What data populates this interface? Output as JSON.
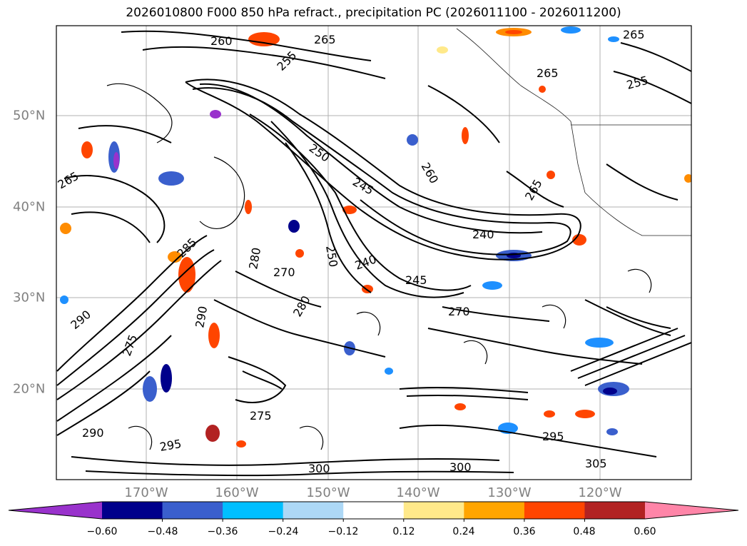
{
  "title": "2026010800 F000 850 hPa refract., precipitation PC (2026011100 - 2026011200)",
  "map": {
    "longitude_labels": [
      "170°W",
      "160°W",
      "150°W",
      "140°W",
      "130°W",
      "120°W"
    ],
    "latitude_labels": [
      "50°N",
      "40°N",
      "30°N",
      "20°N"
    ],
    "contour_labels": [
      "260",
      "265",
      "265",
      "265",
      "255",
      "265",
      "255",
      "250",
      "245",
      "240",
      "240",
      "250",
      "245",
      "260",
      "265",
      "270",
      "275",
      "280",
      "285",
      "290",
      "295",
      "300",
      "295",
      "290",
      "280",
      "270",
      "275",
      "290",
      "300",
      "305"
    ]
  },
  "colorbar": {
    "ticks": [
      "−0.60",
      "−0.48",
      "−0.36",
      "−0.24",
      "−0.12",
      "0.12",
      "0.24",
      "0.36",
      "0.48",
      "0.60"
    ],
    "colors": [
      "#9932cc",
      "#00008b",
      "#3a5fcd",
      "#00bfff",
      "#add8f6",
      "#ffffff",
      "#ffe98a",
      "#ffa500",
      "#ff4500",
      "#b22222",
      "#ff85a8"
    ]
  }
}
